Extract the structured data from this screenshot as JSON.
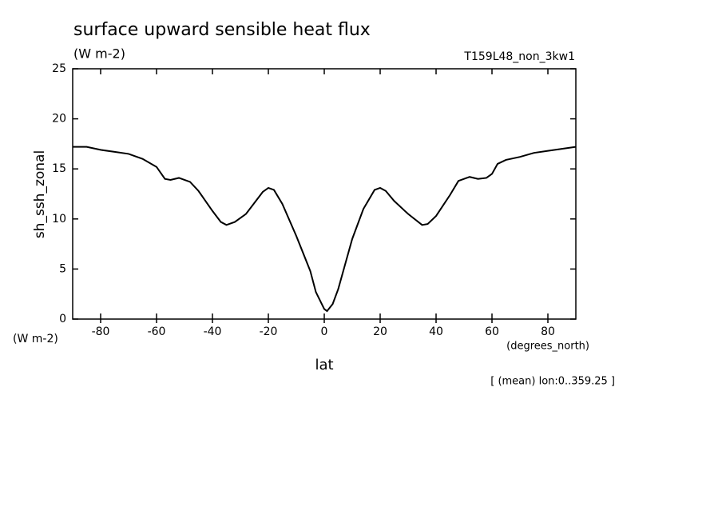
{
  "chart_data": {
    "type": "line",
    "title": "surface upward sensible heat flux",
    "units": "(W m-2)",
    "run_label": "T159L48_non_3kw1",
    "ylabel": "sh_ssh_zonal",
    "xlabel": "lat",
    "x_units": "(degrees_north)",
    "note": "[ (mean) lon:0..359.25 ]",
    "x": [
      -90,
      -85,
      -80,
      -75,
      -70,
      -65,
      -60,
      -57,
      -55,
      -52,
      -48,
      -45,
      -40,
      -37,
      -35,
      -32,
      -28,
      -25,
      -22,
      -20,
      -18,
      -15,
      -10,
      -5,
      -3,
      0,
      1,
      3,
      5,
      8,
      10,
      14,
      18,
      20,
      22,
      25,
      30,
      35,
      37,
      40,
      45,
      48,
      52,
      55,
      58,
      60,
      62,
      65,
      70,
      75,
      80,
      85,
      90
    ],
    "series": [
      {
        "color": "#000000",
        "values": [
          17.2,
          17.2,
          16.9,
          16.7,
          16.5,
          16.0,
          15.2,
          14.0,
          13.9,
          14.1,
          13.7,
          12.8,
          10.8,
          9.7,
          9.4,
          9.7,
          10.5,
          11.6,
          12.7,
          13.1,
          12.9,
          11.5,
          8.3,
          4.8,
          2.7,
          1.0,
          0.8,
          1.5,
          3.0,
          6.0,
          8.0,
          11.0,
          12.9,
          13.1,
          12.8,
          11.8,
          10.5,
          9.4,
          9.5,
          10.3,
          12.4,
          13.8,
          14.2,
          14.0,
          14.1,
          14.5,
          15.5,
          15.9,
          16.2,
          16.6,
          16.8,
          17.0,
          17.2
        ]
      }
    ],
    "xlim": [
      -90,
      90
    ],
    "xticks": [
      -80,
      -60,
      -40,
      -20,
      0,
      20,
      40,
      60,
      80
    ],
    "ylim": [
      0,
      25
    ],
    "yticks": [
      0,
      5,
      10,
      15,
      20,
      25
    ]
  }
}
